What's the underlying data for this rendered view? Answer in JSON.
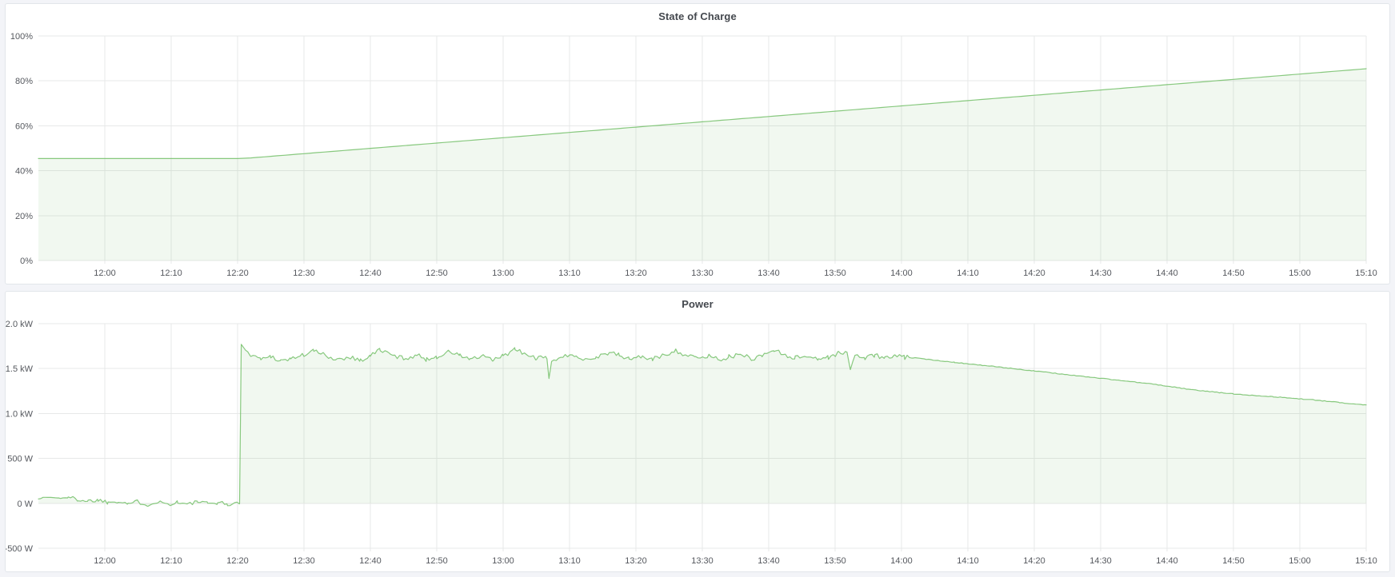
{
  "page": {
    "background": "#f3f4f8",
    "panel_background": "#ffffff",
    "panel_border": "#e2e6ea",
    "grid_color": "#e7e8e8",
    "axis_text_color": "#55585e"
  },
  "chart_data": [
    {
      "type": "area",
      "title": "State of Charge",
      "legend_position": "none",
      "grid": true,
      "x_range": [
        710,
        910
      ],
      "y_range": [
        0,
        100
      ],
      "x_ticks": [
        {
          "m": 720,
          "label": "12:00"
        },
        {
          "m": 730,
          "label": "12:10"
        },
        {
          "m": 740,
          "label": "12:20"
        },
        {
          "m": 750,
          "label": "12:30"
        },
        {
          "m": 760,
          "label": "12:40"
        },
        {
          "m": 770,
          "label": "12:50"
        },
        {
          "m": 780,
          "label": "13:00"
        },
        {
          "m": 790,
          "label": "13:10"
        },
        {
          "m": 800,
          "label": "13:20"
        },
        {
          "m": 810,
          "label": "13:30"
        },
        {
          "m": 820,
          "label": "13:40"
        },
        {
          "m": 830,
          "label": "13:50"
        },
        {
          "m": 840,
          "label": "14:00"
        },
        {
          "m": 850,
          "label": "14:10"
        },
        {
          "m": 860,
          "label": "14:20"
        },
        {
          "m": 870,
          "label": "14:30"
        },
        {
          "m": 880,
          "label": "14:40"
        },
        {
          "m": 890,
          "label": "14:50"
        },
        {
          "m": 900,
          "label": "15:00"
        },
        {
          "m": 910,
          "label": "15:10"
        }
      ],
      "y_ticks": [
        {
          "v": 0,
          "label": "0%"
        },
        {
          "v": 20,
          "label": "20%"
        },
        {
          "v": 40,
          "label": "40%"
        },
        {
          "v": 60,
          "label": "60%"
        },
        {
          "v": 80,
          "label": "80%"
        },
        {
          "v": 100,
          "label": "100%"
        }
      ],
      "series": {
        "name": "State of Charge",
        "unit": "%",
        "color": "#73bf69",
        "fill": "rgba(115,191,105,0.10)",
        "baseline": 0,
        "seed": 7,
        "sample_step": 1,
        "noise": [],
        "points": [
          [
            710,
            45.4
          ],
          [
            740,
            45.4
          ],
          [
            742,
            45.7
          ],
          [
            910,
            85.4
          ]
        ]
      }
    },
    {
      "type": "area",
      "title": "Power",
      "legend_position": "none",
      "grid": true,
      "x_range": [
        710,
        910
      ],
      "y_range": [
        -500,
        2000
      ],
      "x_ticks": [
        {
          "m": 720,
          "label": "12:00"
        },
        {
          "m": 730,
          "label": "12:10"
        },
        {
          "m": 740,
          "label": "12:20"
        },
        {
          "m": 750,
          "label": "12:30"
        },
        {
          "m": 760,
          "label": "12:40"
        },
        {
          "m": 770,
          "label": "12:50"
        },
        {
          "m": 780,
          "label": "13:00"
        },
        {
          "m": 790,
          "label": "13:10"
        },
        {
          "m": 800,
          "label": "13:20"
        },
        {
          "m": 810,
          "label": "13:30"
        },
        {
          "m": 820,
          "label": "13:40"
        },
        {
          "m": 830,
          "label": "13:50"
        },
        {
          "m": 840,
          "label": "14:00"
        },
        {
          "m": 850,
          "label": "14:10"
        },
        {
          "m": 860,
          "label": "14:20"
        },
        {
          "m": 870,
          "label": "14:30"
        },
        {
          "m": 880,
          "label": "14:40"
        },
        {
          "m": 890,
          "label": "14:50"
        },
        {
          "m": 900,
          "label": "15:00"
        },
        {
          "m": 910,
          "label": "15:10"
        }
      ],
      "y_ticks": [
        {
          "v": -500,
          "label": "-500 W"
        },
        {
          "v": 0,
          "label": "0 W"
        },
        {
          "v": 500,
          "label": "500 W"
        },
        {
          "v": 1000,
          "label": "1.0 kW"
        },
        {
          "v": 1500,
          "label": "1.5 kW"
        },
        {
          "v": 2000,
          "label": "2.0 kW"
        }
      ],
      "series": {
        "name": "Power",
        "unit": "W",
        "color": "#73bf69",
        "fill": "rgba(115,191,105,0.10)",
        "baseline": 0,
        "seed": 1337,
        "sample_step": 0.35,
        "noise": [
          {
            "from": 710,
            "to": 715,
            "amp": 9
          },
          {
            "from": 715,
            "to": 740.2,
            "amp": 24
          },
          {
            "from": 741.6,
            "to": 841,
            "amp": 26
          },
          {
            "from": 841,
            "to": 910,
            "amp": 4
          }
        ],
        "points": [
          [
            710,
            55
          ],
          [
            711.5,
            68
          ],
          [
            713,
            58
          ],
          [
            714.5,
            66
          ],
          [
            716,
            42
          ],
          [
            717.5,
            25
          ],
          [
            719,
            38
          ],
          [
            720.5,
            12
          ],
          [
            722,
            28
          ],
          [
            723.5,
            -2
          ],
          [
            725,
            18
          ],
          [
            726.5,
            -15
          ],
          [
            728,
            22
          ],
          [
            729.5,
            -10
          ],
          [
            731,
            14
          ],
          [
            732.5,
            -14
          ],
          [
            734,
            20
          ],
          [
            735.5,
            -6
          ],
          [
            737,
            12
          ],
          [
            738.5,
            -12
          ],
          [
            740.3,
            -5
          ],
          [
            740.55,
            1770
          ],
          [
            741.2,
            1705
          ],
          [
            742,
            1660
          ],
          [
            743.5,
            1605
          ],
          [
            745,
            1640
          ],
          [
            746.5,
            1588
          ],
          [
            748,
            1610
          ],
          [
            750,
            1655
          ],
          [
            751.5,
            1698
          ],
          [
            753,
            1655
          ],
          [
            755,
            1600
          ],
          [
            757,
            1632
          ],
          [
            758.5,
            1590
          ],
          [
            760,
            1645
          ],
          [
            761.5,
            1712
          ],
          [
            763,
            1655
          ],
          [
            765,
            1615
          ],
          [
            767,
            1648
          ],
          [
            768.5,
            1602
          ],
          [
            770,
            1632
          ],
          [
            772,
            1688
          ],
          [
            773.5,
            1645
          ],
          [
            775,
            1608
          ],
          [
            777,
            1630
          ],
          [
            778.5,
            1595
          ],
          [
            780,
            1640
          ],
          [
            781.8,
            1715
          ],
          [
            783.5,
            1650
          ],
          [
            785,
            1618
          ],
          [
            786.6,
            1612
          ],
          [
            786.9,
            1365
          ],
          [
            787.3,
            1598
          ],
          [
            789,
            1628
          ],
          [
            791,
            1648
          ],
          [
            792.5,
            1605
          ],
          [
            794,
            1625
          ],
          [
            796,
            1682
          ],
          [
            797.5,
            1645
          ],
          [
            799,
            1608
          ],
          [
            801,
            1635
          ],
          [
            802.5,
            1600
          ],
          [
            804,
            1648
          ],
          [
            806,
            1702
          ],
          [
            807.5,
            1652
          ],
          [
            809,
            1615
          ],
          [
            811,
            1642
          ],
          [
            812.5,
            1605
          ],
          [
            814,
            1630
          ],
          [
            816,
            1652
          ],
          [
            817.5,
            1610
          ],
          [
            819,
            1645
          ],
          [
            820.8,
            1708
          ],
          [
            822.5,
            1655
          ],
          [
            824,
            1618
          ],
          [
            826,
            1645
          ],
          [
            827.5,
            1605
          ],
          [
            829,
            1628
          ],
          [
            830.5,
            1668
          ],
          [
            831.8,
            1692
          ],
          [
            832.3,
            1482
          ],
          [
            833,
            1640
          ],
          [
            834.5,
            1625
          ],
          [
            836,
            1648
          ],
          [
            837.5,
            1618
          ],
          [
            839,
            1638
          ],
          [
            840.5,
            1625
          ],
          [
            842,
            1618
          ],
          [
            848,
            1570
          ],
          [
            854,
            1522
          ],
          [
            860,
            1474
          ],
          [
            866,
            1424
          ],
          [
            872,
            1376
          ],
          [
            878,
            1326
          ],
          [
            884,
            1262
          ],
          [
            890,
            1218
          ],
          [
            896,
            1186
          ],
          [
            902,
            1152
          ],
          [
            906,
            1122
          ],
          [
            910,
            1095
          ]
        ]
      }
    }
  ]
}
